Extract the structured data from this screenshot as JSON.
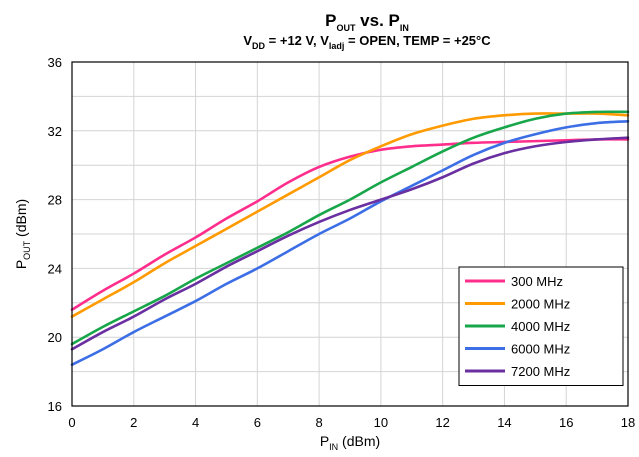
{
  "chart_data": {
    "type": "line",
    "title": {
      "main": "P",
      "main_sub1": "OUT",
      "main_mid": " vs. P",
      "main_sub2": "IN"
    },
    "subtitle": {
      "p1": "V",
      "s1": "DD",
      "p2": " = +12 V, V",
      "s2": "ladj",
      "p3": " = OPEN, TEMP = +25°C"
    },
    "xlabel": {
      "p": "P",
      "s": "IN",
      "rest": " (dBm)"
    },
    "ylabel": {
      "p": "P",
      "s": "OUT",
      "rest": " (dBm)"
    },
    "xlim": [
      0,
      18
    ],
    "ylim": [
      16,
      36
    ],
    "xticks": [
      "0",
      "2",
      "4",
      "6",
      "8",
      "10",
      "12",
      "14",
      "16",
      "18"
    ],
    "yticks": [
      "16",
      "20",
      "24",
      "28",
      "32",
      "36"
    ],
    "grid": true,
    "legend_position": "bottom-right",
    "series": [
      {
        "name": "300 MHz",
        "color": "#ff2d8c",
        "x": [
          0,
          1,
          2,
          3,
          4,
          5,
          6,
          7,
          8,
          9,
          10,
          11,
          12,
          13,
          14,
          15,
          16,
          17,
          18
        ],
        "y": [
          21.6,
          22.7,
          23.7,
          24.8,
          25.8,
          26.9,
          27.9,
          29.0,
          29.9,
          30.5,
          30.9,
          31.1,
          31.2,
          31.3,
          31.35,
          31.4,
          31.45,
          31.5,
          31.5
        ]
      },
      {
        "name": "2000 MHz",
        "color": "#ff9a00",
        "x": [
          0,
          1,
          2,
          3,
          4,
          5,
          6,
          7,
          8,
          9,
          10,
          11,
          12,
          13,
          14,
          15,
          16,
          17,
          18
        ],
        "y": [
          21.2,
          22.2,
          23.2,
          24.3,
          25.3,
          26.3,
          27.3,
          28.3,
          29.3,
          30.3,
          31.1,
          31.8,
          32.3,
          32.7,
          32.9,
          33.0,
          33.0,
          33.0,
          32.9
        ]
      },
      {
        "name": "4000 MHz",
        "color": "#18a64a",
        "x": [
          0,
          1,
          2,
          3,
          4,
          5,
          6,
          7,
          8,
          9,
          10,
          11,
          12,
          13,
          14,
          15,
          16,
          17,
          18
        ],
        "y": [
          19.6,
          20.6,
          21.5,
          22.4,
          23.4,
          24.3,
          25.2,
          26.1,
          27.1,
          28.0,
          29.0,
          29.9,
          30.8,
          31.6,
          32.2,
          32.7,
          33.0,
          33.1,
          33.1
        ]
      },
      {
        "name": "6000 MHz",
        "color": "#3c6ee6",
        "x": [
          0,
          1,
          2,
          3,
          4,
          5,
          6,
          7,
          8,
          9,
          10,
          11,
          12,
          13,
          14,
          15,
          16,
          17,
          18
        ],
        "y": [
          18.4,
          19.3,
          20.3,
          21.2,
          22.1,
          23.1,
          24.0,
          25.0,
          26.0,
          26.9,
          27.9,
          28.8,
          29.7,
          30.6,
          31.3,
          31.8,
          32.2,
          32.45,
          32.55
        ]
      },
      {
        "name": "7200 MHz",
        "color": "#6a2fa0",
        "x": [
          0,
          1,
          2,
          3,
          4,
          5,
          6,
          7,
          8,
          9,
          10,
          11,
          12,
          13,
          14,
          15,
          16,
          17,
          18
        ],
        "y": [
          19.3,
          20.3,
          21.2,
          22.2,
          23.1,
          24.1,
          25.0,
          25.9,
          26.7,
          27.4,
          28.0,
          28.6,
          29.3,
          30.1,
          30.7,
          31.1,
          31.35,
          31.5,
          31.6
        ]
      }
    ]
  }
}
